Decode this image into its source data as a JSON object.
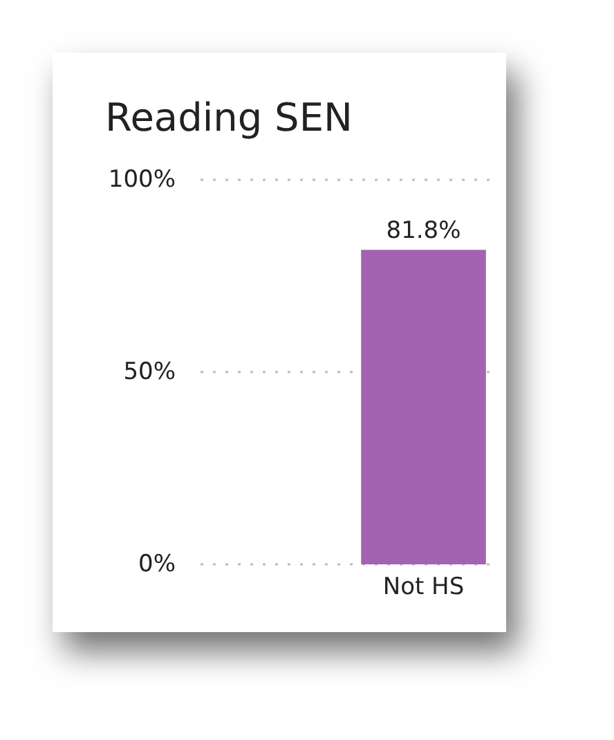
{
  "chart_data": {
    "type": "bar",
    "title": "Reading SEN",
    "categories": [
      null,
      "Not HS"
    ],
    "values": [
      null,
      81.8
    ],
    "value_labels": [
      null,
      "81.8%"
    ],
    "color": "#a463b0",
    "ylim": [
      0,
      100
    ],
    "yticks": [
      {
        "value": 0,
        "label": "0%"
      },
      {
        "value": 50,
        "label": "50%"
      },
      {
        "value": 100,
        "label": "100%"
      }
    ],
    "grid": "y"
  }
}
